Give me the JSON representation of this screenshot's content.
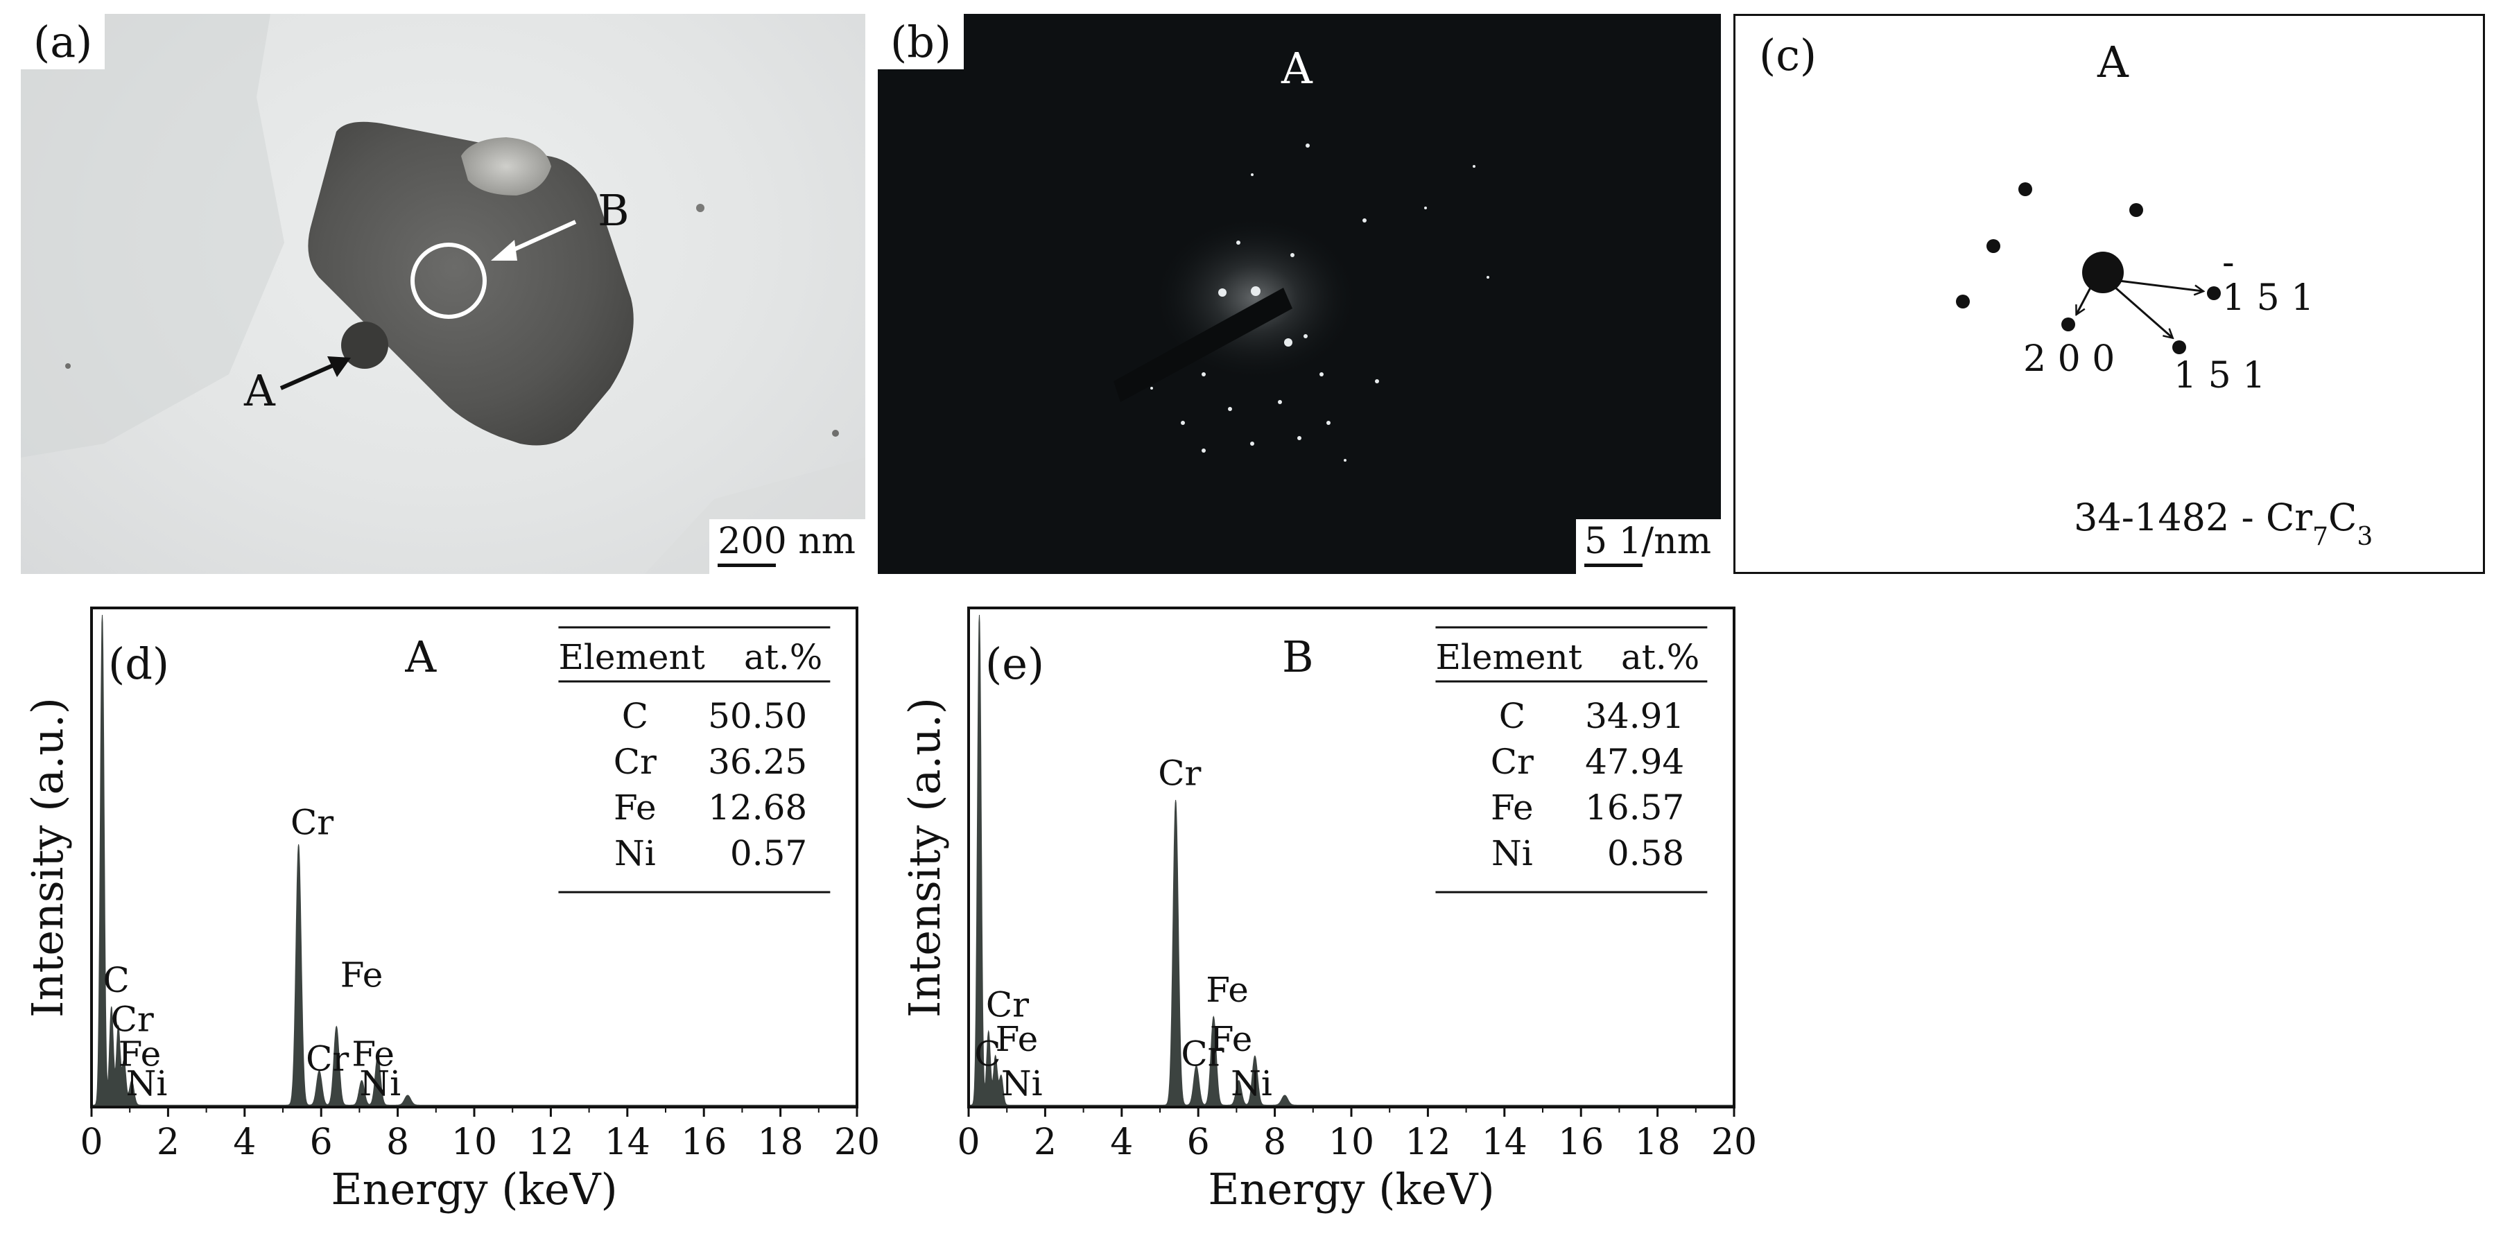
{
  "panel_a": {
    "tag": "(a)",
    "label_A": "A",
    "label_B": "B",
    "scale_text": "200 nm"
  },
  "panel_b": {
    "tag": "(b)",
    "title": "A",
    "scale_text": "5 1/nm"
  },
  "panel_c": {
    "tag": "(c)",
    "title": "A",
    "index_1": "1 5 1",
    "index_1_overbar": "-",
    "index_2": "2 0 0",
    "index_3": "1 5 1",
    "card_prefix": "34-1482 - Cr",
    "card_sub1": "7",
    "card_mid": "C",
    "card_sub2": "3"
  },
  "colors": {
    "axis": "#111111",
    "spectrum": "#3c4340",
    "tem_bg": "#e3e5e5",
    "saed_bg": "#0d1012"
  },
  "chart_data": [
    {
      "type": "area",
      "panel": "(d)",
      "title": "A",
      "xlabel": "Energy (keV)",
      "ylabel": "Intensity (a.u.)",
      "xlim": [
        0,
        20
      ],
      "xticks": [
        0,
        2,
        4,
        6,
        8,
        10,
        12,
        14,
        16,
        18,
        20
      ],
      "ylim": [
        0,
        1
      ],
      "peaks": [
        {
          "x": 0.28,
          "y": 1.0,
          "w": 0.05
        },
        {
          "x": 0.52,
          "y": 0.2,
          "w": 0.05
        },
        {
          "x": 0.7,
          "y": 0.16,
          "w": 0.05
        },
        {
          "x": 0.85,
          "y": 0.09,
          "w": 0.05
        },
        {
          "x": 1.05,
          "y": 0.05,
          "w": 0.06
        },
        {
          "x": 5.41,
          "y": 0.53,
          "w": 0.07
        },
        {
          "x": 5.95,
          "y": 0.07,
          "w": 0.07
        },
        {
          "x": 6.4,
          "y": 0.16,
          "w": 0.07
        },
        {
          "x": 7.06,
          "y": 0.05,
          "w": 0.07
        },
        {
          "x": 7.48,
          "y": 0.1,
          "w": 0.07
        },
        {
          "x": 8.26,
          "y": 0.02,
          "w": 0.08
        }
      ],
      "peak_labels": [
        {
          "text": "C",
          "x": 0.3,
          "y": 0.22
        },
        {
          "text": "Cr",
          "x": 0.5,
          "y": 0.14
        },
        {
          "text": "Fe",
          "x": 0.7,
          "y": 0.07
        },
        {
          "text": "Ni",
          "x": 0.9,
          "y": 0.01
        },
        {
          "text": "Cr",
          "x": 5.2,
          "y": 0.54
        },
        {
          "text": "Fe",
          "x": 6.5,
          "y": 0.23
        },
        {
          "text": "Cr",
          "x": 5.6,
          "y": 0.06
        },
        {
          "text": "Fe",
          "x": 6.8,
          "y": 0.07
        },
        {
          "text": "Ni",
          "x": 7.0,
          "y": 0.01
        }
      ],
      "table": {
        "headers": [
          "Element",
          "at.%"
        ],
        "rows": [
          [
            "C",
            "50.50"
          ],
          [
            "Cr",
            "36.25"
          ],
          [
            "Fe",
            "12.68"
          ],
          [
            "Ni",
            "0.57"
          ]
        ]
      }
    },
    {
      "type": "area",
      "panel": "(e)",
      "title": "B",
      "xlabel": "Energy (keV)",
      "ylabel": "Intensity (a.u.)",
      "xlim": [
        0,
        20
      ],
      "xticks": [
        0,
        2,
        4,
        6,
        8,
        10,
        12,
        14,
        16,
        18,
        20
      ],
      "ylim": [
        0,
        1
      ],
      "peaks": [
        {
          "x": 0.28,
          "y": 1.0,
          "w": 0.05
        },
        {
          "x": 0.52,
          "y": 0.15,
          "w": 0.05
        },
        {
          "x": 0.7,
          "y": 0.1,
          "w": 0.05
        },
        {
          "x": 0.85,
          "y": 0.06,
          "w": 0.05
        },
        {
          "x": 5.41,
          "y": 0.62,
          "w": 0.07
        },
        {
          "x": 5.95,
          "y": 0.08,
          "w": 0.07
        },
        {
          "x": 6.4,
          "y": 0.18,
          "w": 0.07
        },
        {
          "x": 7.06,
          "y": 0.05,
          "w": 0.07
        },
        {
          "x": 7.48,
          "y": 0.1,
          "w": 0.07
        },
        {
          "x": 8.26,
          "y": 0.02,
          "w": 0.08
        }
      ],
      "peak_labels": [
        {
          "text": "Cr",
          "x": 0.45,
          "y": 0.17
        },
        {
          "text": "Fe",
          "x": 0.7,
          "y": 0.1
        },
        {
          "text": "C",
          "x": 0.15,
          "y": 0.07
        },
        {
          "text": "Ni",
          "x": 0.85,
          "y": 0.01
        },
        {
          "text": "Cr",
          "x": 4.95,
          "y": 0.64
        },
        {
          "text": "Fe",
          "x": 6.2,
          "y": 0.2
        },
        {
          "text": "Cr",
          "x": 5.55,
          "y": 0.07
        },
        {
          "text": "Fe",
          "x": 6.3,
          "y": 0.1
        },
        {
          "text": "Ni",
          "x": 6.85,
          "y": 0.01
        }
      ],
      "table": {
        "headers": [
          "Element",
          "at.%"
        ],
        "rows": [
          [
            "C",
            "34.91"
          ],
          [
            "Cr",
            "47.94"
          ],
          [
            "Fe",
            "16.57"
          ],
          [
            "Ni",
            "0.58"
          ]
        ]
      }
    }
  ]
}
